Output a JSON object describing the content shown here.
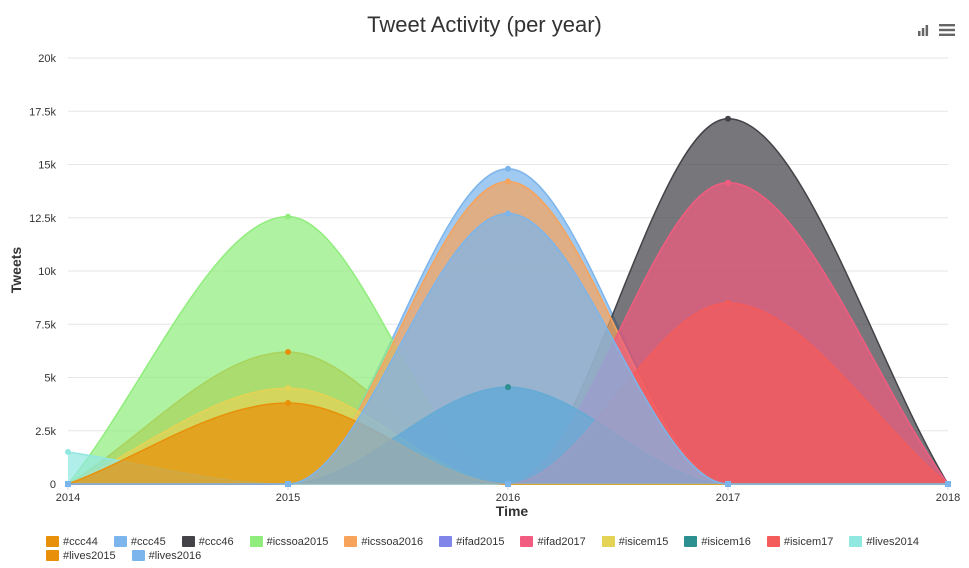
{
  "title": "Tweet Activity (per year)",
  "toolbar": {
    "icons": [
      "bar-chart-icon",
      "menu-icon"
    ]
  },
  "chart_data": {
    "type": "area",
    "title": "Tweet Activity (per year)",
    "xlabel": "Time",
    "ylabel": "Tweets",
    "x": [
      2014,
      2015,
      2016,
      2017,
      2018
    ],
    "x_tick_labels": [
      "2014",
      "2015",
      "2016",
      "2017",
      "2018"
    ],
    "ylim": [
      0,
      20000
    ],
    "y_tick_labels": [
      "0",
      "2.5k",
      "5k",
      "7.5k",
      "10k",
      "12.5k",
      "15k",
      "17.5k",
      "20k"
    ],
    "grid": true,
    "legend_position": "bottom",
    "series": [
      {
        "name": "#ccc44",
        "color": "#e8900a",
        "values": [
          0,
          6200,
          0,
          0,
          0
        ]
      },
      {
        "name": "#ccc45",
        "color": "#7cb5ec",
        "values": [
          0,
          0,
          14800,
          0,
          0
        ]
      },
      {
        "name": "#ccc46",
        "color": "#434348",
        "values": [
          0,
          0,
          0,
          17150,
          0
        ]
      },
      {
        "name": "#icssoa2015",
        "color": "#90ed7d",
        "values": [
          0,
          12550,
          0,
          0,
          0
        ]
      },
      {
        "name": "#icssoa2016",
        "color": "#f7a35c",
        "values": [
          0,
          0,
          14200,
          0,
          0
        ]
      },
      {
        "name": "#ifad2015",
        "color": "#8085e9",
        "values": [
          0,
          0,
          4550,
          0,
          0
        ]
      },
      {
        "name": "#ifad2017",
        "color": "#f15c80",
        "values": [
          0,
          0,
          0,
          14150,
          0
        ]
      },
      {
        "name": "#isicem15",
        "color": "#e4d354",
        "values": [
          0,
          4500,
          0,
          0,
          0
        ]
      },
      {
        "name": "#isicem16",
        "color": "#2b908f",
        "values": [
          0,
          0,
          4550,
          0,
          0
        ]
      },
      {
        "name": "#isicem17",
        "color": "#f45b5b",
        "values": [
          0,
          0,
          0,
          8500,
          0
        ]
      },
      {
        "name": "#lives2014",
        "color": "#91e8e1",
        "values": [
          1500,
          0,
          0,
          0,
          0
        ]
      },
      {
        "name": "#lives2015",
        "color": "#e8900a",
        "values": [
          0,
          3800,
          0,
          0,
          0
        ]
      },
      {
        "name": "#lives2016",
        "color": "#7cb5ec",
        "values": [
          0,
          0,
          12700,
          0,
          0
        ]
      }
    ]
  }
}
